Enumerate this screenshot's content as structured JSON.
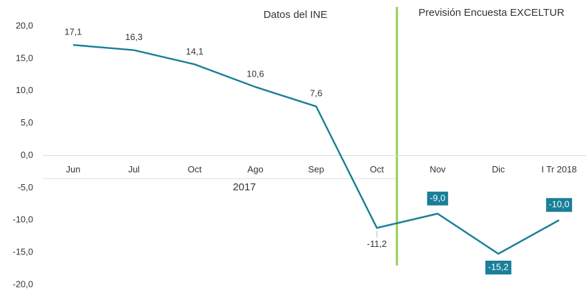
{
  "chart_data": {
    "type": "line",
    "annotations": [
      "Datos del INE",
      "Previsión Encuesta EXCELTUR",
      "2017"
    ],
    "categories": [
      "Jun",
      "Jul",
      "Oct",
      "Ago",
      "Sep",
      "Oct",
      "Nov",
      "Dic",
      "I Tr 2018"
    ],
    "series": [
      {
        "color": "#1a7f98",
        "values": [
          17.1,
          16.3,
          14.1,
          10.6,
          7.6,
          -11.2,
          -9.0,
          -15.2,
          -10.0
        ],
        "value_labels": [
          "17,1",
          "16,3",
          "14,1",
          "10,6",
          "7,6",
          "-11,2",
          "-9,0",
          "-15,2",
          "-10,0"
        ]
      }
    ],
    "ylim": [
      -20,
      20
    ],
    "yticks": [
      {
        "value": 20,
        "label": "20,0"
      },
      {
        "value": 15,
        "label": "15,0"
      },
      {
        "value": 10,
        "label": "10,0"
      },
      {
        "value": 5,
        "label": "5,0"
      },
      {
        "value": 0,
        "label": "0,0"
      },
      {
        "value": -5,
        "label": "-5,0"
      },
      {
        "value": -10,
        "label": "-10,0"
      },
      {
        "value": -15,
        "label": "-15,0"
      },
      {
        "value": -20,
        "label": "-20,0"
      }
    ]
  }
}
